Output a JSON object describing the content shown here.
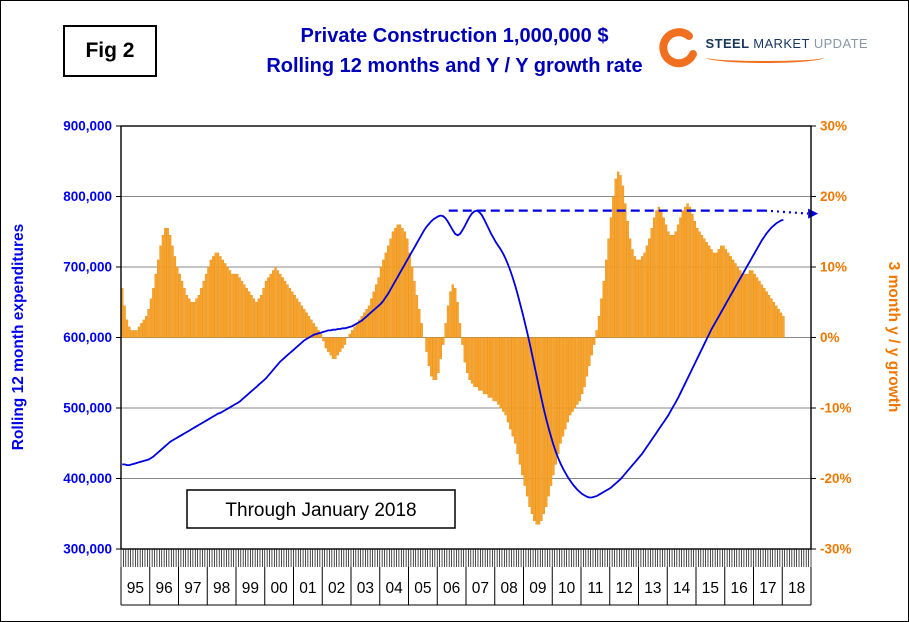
{
  "figure_label": "Fig 2",
  "title_line1": "Private Construction 1,000,000 $",
  "title_line2": "Rolling 12 months and Y / Y growth rate",
  "logo": {
    "word1": "STEEL",
    "word2": "MARKET",
    "word3": "UPDATE"
  },
  "annotation_box": "Through January 2018",
  "colors": {
    "title": "#0000B8",
    "left_axis_blue": "#0000F0",
    "right_axis_orange": "#F07800",
    "bar_fill": "#FCA32B",
    "bar_border": "#E18D10",
    "line_blue": "#0000E0",
    "logo_navy": "#17375E",
    "logo_orange": "#F07020"
  },
  "chart_data": {
    "type": "combo-bar-line",
    "title": "Private Construction 1,000,000 $ — Rolling 12 months and Y / Y growth rate",
    "start_year": 1995,
    "points_per_year": 12,
    "last_point": "January 2018",
    "grid": "horizontal",
    "x_axis": {
      "year_labels": [
        "95",
        "96",
        "97",
        "98",
        "99",
        "00",
        "01",
        "02",
        "03",
        "04",
        "05",
        "06",
        "07",
        "08",
        "09",
        "10",
        "11",
        "12",
        "13",
        "14",
        "15",
        "16",
        "17",
        "18"
      ]
    },
    "left_axis": {
      "title": "Rolling 12 month expenditures",
      "min": 300000,
      "max": 900000,
      "step": 100000,
      "tick_labels": [
        "900,000",
        "800,000",
        "700,000",
        "600,000",
        "500,000",
        "400,000",
        "300,000"
      ],
      "color": "#0000F0"
    },
    "right_axis": {
      "title": "3 month y / y growth",
      "min": -30,
      "max": 30,
      "step": 10,
      "tick_labels": [
        "30%",
        "20%",
        "10%",
        "0%",
        "-10%",
        "-20%",
        "-30%"
      ],
      "color": "#F07800"
    },
    "series": [
      {
        "name": "Rolling 12 month expenditures ($1,000,000)",
        "type": "line",
        "axis": "left",
        "color": "#0000E0",
        "values": [
          420000,
          420000,
          419000,
          419000,
          420000,
          421000,
          422000,
          423000,
          424000,
          425000,
          426000,
          427000,
          429000,
          431000,
          434000,
          437000,
          440000,
          443000,
          446000,
          449000,
          452000,
          454000,
          456000,
          458000,
          460000,
          462000,
          464000,
          466000,
          468000,
          470000,
          472000,
          474000,
          476000,
          478000,
          480000,
          482000,
          484000,
          486000,
          488000,
          490000,
          492000,
          493000,
          495000,
          497000,
          499000,
          501000,
          503000,
          505000,
          507000,
          509000,
          512000,
          515000,
          518000,
          521000,
          524000,
          527000,
          530000,
          533000,
          536000,
          539000,
          542000,
          546000,
          550000,
          554000,
          558000,
          562000,
          566000,
          569000,
          572000,
          575000,
          578000,
          581000,
          584000,
          587000,
          590000,
          593000,
          596000,
          598000,
          600000,
          602000,
          604000,
          605000,
          606000,
          607000,
          608000,
          609000,
          610000,
          610000,
          611000,
          611000,
          612000,
          612000,
          613000,
          613000,
          614000,
          615000,
          616000,
          618000,
          620000,
          622000,
          624000,
          627000,
          630000,
          633000,
          636000,
          639000,
          642000,
          645000,
          648000,
          652000,
          657000,
          662000,
          668000,
          674000,
          680000,
          686000,
          692000,
          698000,
          704000,
          710000,
          716000,
          722000,
          728000,
          734000,
          740000,
          746000,
          752000,
          757000,
          761000,
          765000,
          768000,
          770000,
          772000,
          773000,
          772000,
          769000,
          764000,
          758000,
          752000,
          747000,
          745000,
          747000,
          752000,
          758000,
          765000,
          771000,
          776000,
          779000,
          780000,
          778000,
          774000,
          768000,
          761000,
          754000,
          747000,
          741000,
          735000,
          730000,
          725000,
          719000,
          712000,
          704000,
          695000,
          685000,
          674000,
          662000,
          649000,
          636000,
          622000,
          608000,
          593000,
          577000,
          561000,
          545000,
          529000,
          513000,
          498000,
          484000,
          471000,
          459000,
          448000,
          438000,
          429000,
          421000,
          414000,
          408000,
          402000,
          397000,
          392000,
          388000,
          384000,
          381000,
          378000,
          376000,
          374000,
          373000,
          373000,
          374000,
          375000,
          377000,
          379000,
          381000,
          383000,
          385000,
          387000,
          390000,
          393000,
          396000,
          399000,
          403000,
          407000,
          411000,
          415000,
          419000,
          423000,
          427000,
          431000,
          435000,
          440000,
          445000,
          450000,
          455000,
          460000,
          465000,
          470000,
          475000,
          480000,
          485000,
          490000,
          496000,
          502000,
          508000,
          514000,
          521000,
          528000,
          535000,
          542000,
          549000,
          556000,
          563000,
          570000,
          577000,
          584000,
          591000,
          598000,
          605000,
          612000,
          618000,
          624000,
          630000,
          636000,
          642000,
          648000,
          654000,
          660000,
          666000,
          672000,
          678000,
          684000,
          690000,
          696000,
          702000,
          708000,
          714000,
          720000,
          726000,
          732000,
          738000,
          743000,
          748000,
          752000,
          756000,
          759000,
          762000,
          764000,
          766000,
          767000
        ]
      },
      {
        "name": "3 month y / y growth rate (%)",
        "type": "bar",
        "axis": "right",
        "color": "#FCA32B",
        "border_color": "#E18D10",
        "values": [
          7,
          4.5,
          2.5,
          1.5,
          1,
          1,
          1,
          1.5,
          2,
          2.5,
          3,
          4,
          5.5,
          7,
          9,
          11,
          13,
          14.5,
          15.5,
          15.5,
          14.5,
          13,
          11.5,
          10,
          9,
          8,
          7,
          6,
          5.5,
          5,
          5,
          5.5,
          6,
          7,
          8,
          9,
          10,
          11,
          11.5,
          12,
          12,
          11.5,
          11,
          10.5,
          10,
          9.5,
          9,
          9,
          9,
          8.5,
          8,
          7.5,
          7,
          6.5,
          6,
          5.5,
          5,
          5.5,
          6,
          7,
          8,
          8.5,
          9,
          9.5,
          10,
          9.5,
          9,
          8.5,
          8,
          7.5,
          7,
          6.5,
          6,
          5.5,
          5,
          4.5,
          4,
          3.5,
          3,
          2.5,
          2,
          1.5,
          1,
          0.5,
          -0.5,
          -1.5,
          -2,
          -2.5,
          -3,
          -3,
          -2.5,
          -2,
          -1.5,
          -1,
          0,
          0.5,
          1,
          1.5,
          2,
          2.5,
          3,
          3.5,
          4,
          4.5,
          5.5,
          6.5,
          7.5,
          8.5,
          10,
          11,
          12,
          13,
          14,
          15,
          15.5,
          16,
          16,
          15.5,
          15,
          14,
          12,
          10,
          8,
          6,
          4,
          2,
          0,
          -2,
          -4,
          -5.5,
          -6,
          -6,
          -5,
          -3,
          -1,
          2,
          4.5,
          6.5,
          7.5,
          7,
          5,
          2,
          -1,
          -3.5,
          -5,
          -6,
          -6.5,
          -7,
          -7,
          -7.5,
          -7.5,
          -8,
          -8,
          -8.5,
          -8.5,
          -9,
          -9,
          -9.5,
          -10,
          -10.5,
          -11,
          -12,
          -13,
          -14,
          -15,
          -16.5,
          -18,
          -19.5,
          -21,
          -22.5,
          -24,
          -25,
          -26,
          -26.5,
          -26.5,
          -26,
          -25,
          -24,
          -22.5,
          -21,
          -19.5,
          -18,
          -16.5,
          -15,
          -14,
          -13,
          -12,
          -11,
          -10.5,
          -10,
          -9.5,
          -9,
          -8,
          -7,
          -5.5,
          -4,
          -2.5,
          -1,
          1,
          3,
          5.5,
          8,
          11,
          14,
          17,
          20,
          22.5,
          23.5,
          23,
          21.5,
          19,
          16.5,
          14,
          12.5,
          11.5,
          11,
          11,
          11.5,
          12,
          13,
          14,
          15.5,
          17,
          18,
          18.5,
          18,
          17,
          16,
          15,
          14.5,
          14.5,
          15,
          16,
          17,
          18,
          18.5,
          19,
          18.5,
          17.5,
          16.5,
          15.5,
          15,
          14.5,
          14,
          13.5,
          13,
          12.5,
          12,
          12,
          12.5,
          13,
          13,
          12.5,
          12,
          11.5,
          11,
          10.5,
          10,
          9.5,
          9,
          9,
          9,
          9.5,
          9.5,
          9,
          8.5,
          8,
          7.5,
          7,
          6.5,
          6,
          5.5,
          5,
          4.5,
          4,
          3.5,
          3
        ]
      }
    ],
    "peak_reference_line": {
      "value": 780000,
      "axis": "left",
      "color": "#0000E0",
      "x_start_year": 2006.4,
      "dash_end_year": 2017.4,
      "dot_end_year": 2018.9,
      "style": "dashed then dotted with right arrow"
    }
  }
}
